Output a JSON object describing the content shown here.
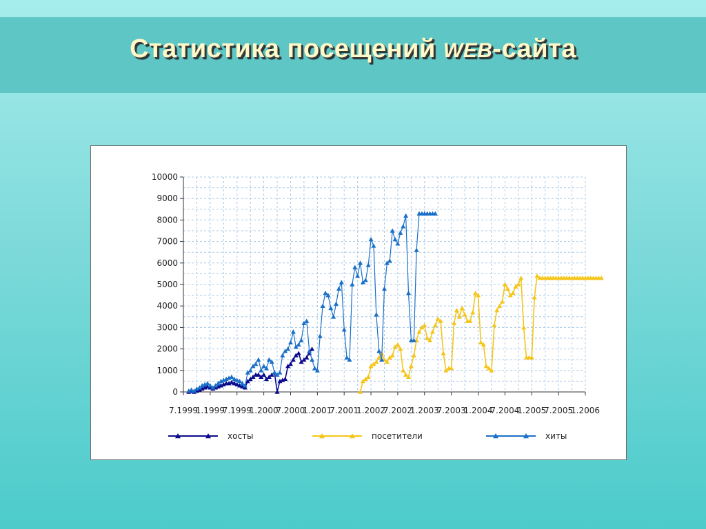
{
  "slide": {
    "title_part1": "Статистика посещений",
    "title_web": "WEB",
    "title_part2": "-сайта"
  },
  "colors": {
    "hosts": "#0a0a8c",
    "visitors": "#f5c518",
    "hits": "#1a6fc8",
    "grid": "#a8c8e8"
  },
  "chart_data": {
    "type": "line",
    "title": "",
    "xlabel": "",
    "ylabel": "",
    "ylim": [
      0,
      10000
    ],
    "yticks": [
      0,
      1000,
      2000,
      3000,
      4000,
      5000,
      6000,
      7000,
      8000,
      9000,
      10000
    ],
    "x_tick_labels": [
      "7.1999",
      "1.1999",
      "7.1999",
      "1.2000",
      "7.2000",
      "1.2001",
      "7.2001",
      "1.2002",
      "7.2002",
      "1.2003",
      "7.2003",
      "1.2004",
      "7.2004",
      "1.2005",
      "7.2005",
      "1.2006"
    ],
    "grid": true,
    "legend_position": "bottom",
    "series": [
      {
        "name": "хосты",
        "color": "#0a0a8c",
        "x": [
          1.0,
          1.5,
          2.0,
          2.5,
          3.0,
          3.5,
          4.0,
          4.5,
          5.0,
          5.5,
          6.0,
          6.5,
          7.0,
          7.5,
          8.0,
          8.5,
          9.0,
          9.5,
          10.0,
          10.5,
          11.0,
          11.5,
          12.0,
          12.5,
          13.0,
          13.5,
          14.0,
          14.5,
          15.0,
          15.5,
          16.0,
          16.5,
          17.0,
          17.5,
          18.0,
          18.5,
          19.0,
          19.5,
          20.0,
          20.5,
          21.0,
          21.5,
          22.0,
          22.5,
          23.0,
          23.5,
          24.0
        ],
        "y": [
          0,
          50,
          0,
          50,
          100,
          150,
          200,
          250,
          200,
          150,
          200,
          250,
          300,
          350,
          400,
          400,
          450,
          400,
          350,
          300,
          250,
          200,
          500,
          600,
          700,
          800,
          800,
          700,
          800,
          600,
          700,
          800,
          900,
          0,
          500,
          550,
          600,
          1200,
          1300,
          1500,
          1700,
          1800,
          1400,
          1500,
          1600,
          1800,
          2000
        ]
      },
      {
        "name": "посетители",
        "color": "#f5c518",
        "x": [
          33.0,
          33.5,
          34.0,
          34.5,
          35.0,
          35.5,
          36.0,
          36.5,
          37.0,
          37.5,
          38.0,
          38.5,
          39.0,
          39.5,
          40.0,
          40.5,
          41.0,
          41.5,
          42.0,
          42.5,
          43.0,
          43.5,
          44.0,
          44.5,
          45.0,
          45.5,
          46.0,
          46.5,
          47.0,
          47.5,
          48.0,
          48.5,
          49.0,
          49.5,
          50.0,
          50.5,
          51.0,
          51.5,
          52.0,
          52.5,
          53.0,
          53.5,
          54.0,
          54.5,
          55.0,
          55.5,
          56.0,
          56.5,
          57.0,
          57.5,
          58.0,
          58.5,
          59.0,
          59.5,
          60.0,
          60.5,
          61.0,
          61.5,
          62.0,
          62.5,
          63.0,
          63.5,
          64.0,
          64.5,
          65.0,
          65.5,
          66.0,
          66.5,
          67.0,
          67.5,
          68.0,
          68.5,
          69.0,
          69.5,
          70.0,
          70.5,
          71.0,
          71.5,
          72.0,
          72.5,
          73.0,
          73.5,
          74.0,
          74.5,
          75.0,
          75.5,
          76.0,
          76.5,
          77.0,
          77.5,
          78.0
        ],
        "y": [
          0,
          500,
          600,
          700,
          1200,
          1300,
          1400,
          1600,
          1800,
          1500,
          1400,
          1600,
          1700,
          2100,
          2200,
          2000,
          1000,
          800,
          700,
          1200,
          1700,
          2400,
          2800,
          3000,
          3100,
          2500,
          2400,
          2800,
          3100,
          3400,
          3300,
          1800,
          1000,
          1100,
          1100,
          3200,
          3800,
          3500,
          3900,
          3600,
          3300,
          3300,
          3700,
          4600,
          4500,
          2300,
          2200,
          1200,
          1100,
          1000,
          3100,
          3800,
          4000,
          4200,
          5000,
          4800,
          4500,
          4600,
          4900,
          5000,
          5300,
          3000,
          1600,
          1600,
          1600,
          4400,
          5400,
          5300,
          5300,
          5300,
          5300,
          5300,
          5300,
          5300,
          5300,
          5300,
          5300,
          5300,
          5300,
          5300,
          5300,
          5300,
          5300,
          5300,
          5300,
          5300,
          5300,
          5300,
          5300,
          5300,
          5300
        ]
      },
      {
        "name": "хиты",
        "color": "#1a6fc8",
        "x": [
          1.0,
          1.5,
          2.0,
          2.5,
          3.0,
          3.5,
          4.0,
          4.5,
          5.0,
          5.5,
          6.0,
          6.5,
          7.0,
          7.5,
          8.0,
          8.5,
          9.0,
          9.5,
          10.0,
          10.5,
          11.0,
          11.5,
          12.0,
          12.5,
          13.0,
          13.5,
          14.0,
          14.5,
          15.0,
          15.5,
          16.0,
          16.5,
          17.0,
          17.5,
          18.0,
          18.5,
          19.0,
          19.5,
          20.0,
          20.5,
          21.0,
          21.5,
          22.0,
          22.5,
          23.0,
          23.5,
          24.0,
          24.5,
          25.0,
          25.5,
          26.0,
          26.5,
          27.0,
          27.5,
          28.0,
          28.5,
          29.0,
          29.5,
          30.0,
          30.5,
          31.0,
          31.5,
          32.0,
          32.5,
          33.0,
          33.5,
          34.0,
          34.5,
          35.0,
          35.5,
          36.0,
          36.5,
          37.0,
          37.5,
          38.0,
          38.5,
          39.0,
          39.5,
          40.0,
          40.5,
          41.0,
          41.5,
          42.0,
          42.5,
          43.0,
          43.5,
          44.0,
          44.5,
          45.0,
          45.5,
          46.0,
          46.5,
          47.0
        ],
        "y": [
          50,
          100,
          50,
          150,
          200,
          300,
          350,
          400,
          300,
          200,
          300,
          400,
          500,
          550,
          600,
          650,
          700,
          600,
          550,
          500,
          400,
          300,
          900,
          1000,
          1200,
          1300,
          1500,
          1000,
          1200,
          1100,
          1500,
          1400,
          900,
          800,
          900,
          1700,
          1900,
          2000,
          2300,
          2800,
          2100,
          2200,
          2400,
          3200,
          3300,
          1900,
          1500,
          1100,
          1000,
          2600,
          4000,
          4600,
          4500,
          3900,
          3500,
          4100,
          4800,
          5100,
          2900,
          1600,
          1500,
          5000,
          5800,
          5400,
          6000,
          5100,
          5200,
          5900,
          7100,
          6800,
          3600,
          1900,
          1500,
          4800,
          6000,
          6100,
          7500,
          7100,
          6900,
          7400,
          7700,
          8200,
          4600,
          2400,
          2400,
          6600,
          8300,
          8300,
          8300,
          8300,
          8300,
          8300,
          8300
        ]
      }
    ]
  }
}
